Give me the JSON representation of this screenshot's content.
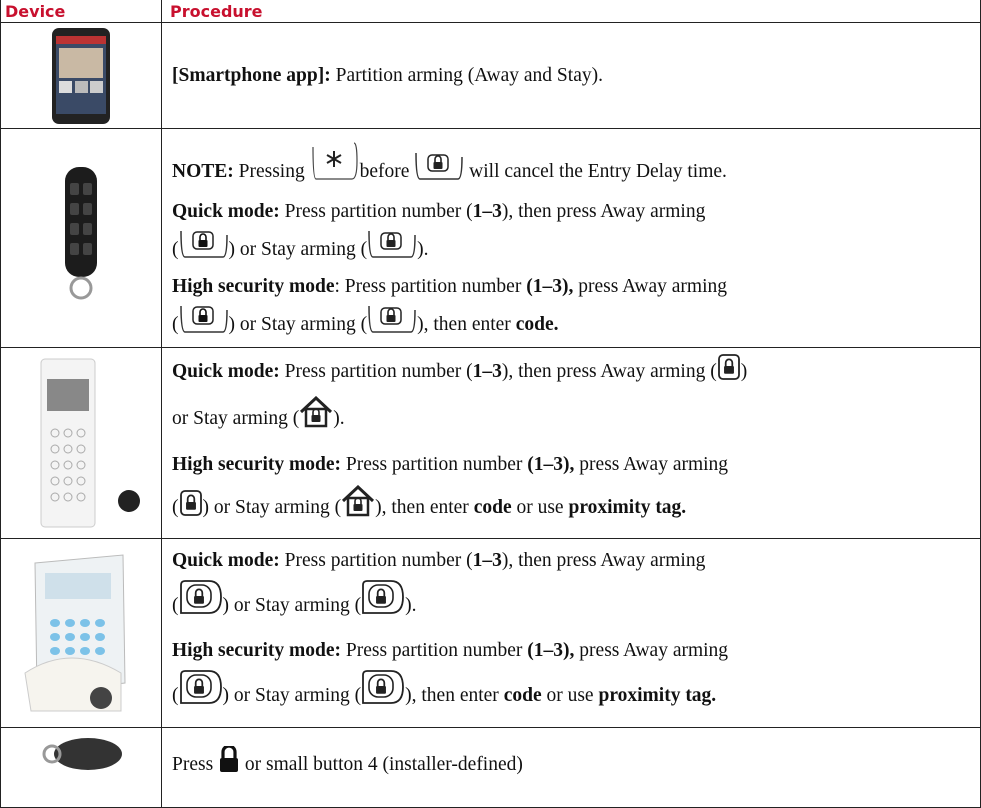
{
  "table": {
    "header": [
      "Device",
      "Procedure"
    ],
    "rows": [
      {
        "lines": [
          [
            "[Smartphone app]:",
            " Partition arming (Away and Stay)."
          ]
        ]
      },
      {
        "lines": [
          [
            "NOTE:",
            " Pressing ",
            "before ",
            "will cancel the Entry Delay time."
          ],
          [
            "Quick mode:",
            " Press partition number (",
            "1–3",
            "), then press Away arming"
          ],
          [
            "(",
            ") or Stay arming (",
            ")."
          ],
          [
            "High security mode",
            ": Press partition number ",
            "(1–3),",
            " press Away arming"
          ],
          [
            "(",
            ") or Stay arming (",
            "), then enter ",
            "code."
          ]
        ]
      },
      {
        "lines": [
          [
            "Quick mode:",
            " Press partition number (",
            "1–3",
            "), then press Away arming (",
            ")"
          ],
          [
            "or Stay arming (",
            ")."
          ],
          [
            "High security mode:",
            " Press partition number ",
            "(1–3),",
            " press Away arming"
          ],
          [
            "(",
            ") or Stay arming (",
            "), then enter ",
            "code",
            " or use ",
            "proximity tag."
          ]
        ]
      },
      {
        "lines": [
          [
            "Quick mode:",
            " Press partition number (",
            "1–3",
            "), then press Away arming"
          ],
          [
            "(",
            ") or Stay arming (",
            ")."
          ],
          [
            "High security mode:",
            " Press partition number ",
            "(1–3),",
            " press Away arming"
          ],
          [
            "(",
            ") or Stay arming (",
            "), then enter ",
            "code",
            " or use ",
            "proximity tag."
          ]
        ]
      },
      {
        "lines": [
          [
            "Press ",
            " or small button 4 (installer-defined)"
          ]
        ]
      }
    ]
  }
}
